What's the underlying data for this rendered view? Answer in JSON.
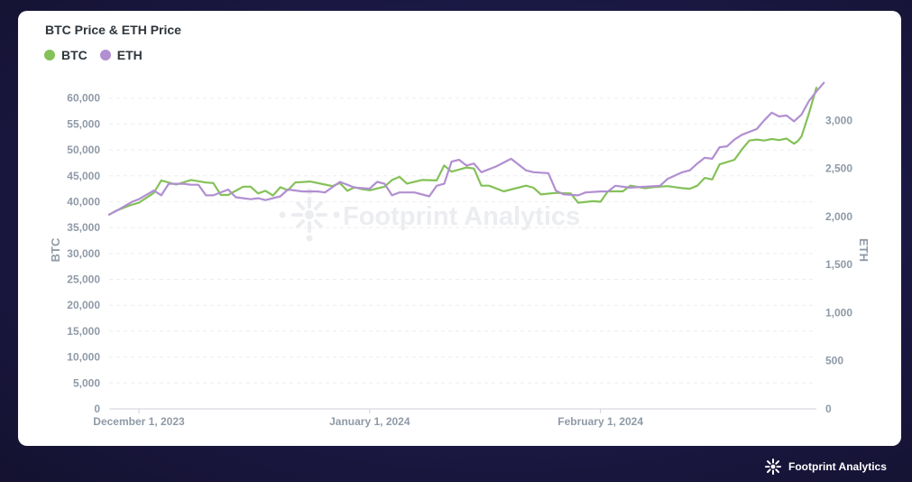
{
  "title": "BTC Price & ETH Price",
  "watermark": "Footprint Analytics",
  "footer_brand": "Footprint Analytics",
  "chart_data": {
    "type": "line",
    "title": "BTC Price & ETH Price",
    "x_ticks": [
      "December 1, 2023",
      "January 1, 2024",
      "February 1, 2024"
    ],
    "x_range": [
      "2023-11-27",
      "2024-02-28"
    ],
    "y_left": {
      "label": "BTC",
      "range": [
        0,
        65000
      ],
      "ticks": [
        "0",
        "5,000",
        "10,000",
        "15,000",
        "20,000",
        "25,000",
        "30,000",
        "35,000",
        "40,000",
        "45,000",
        "50,000",
        "55,000",
        "60,000"
      ]
    },
    "y_right": {
      "label": "ETH",
      "range": [
        0,
        3500
      ],
      "ticks": [
        "0",
        "500",
        "1,000",
        "1,500",
        "2,000",
        "2,500",
        "3,000"
      ]
    },
    "grid": true,
    "legend_position": "top-left",
    "series": [
      {
        "name": "BTC",
        "axis": "left",
        "color": "#84c158",
        "points": [
          [
            "2023-11-27",
            37500
          ],
          [
            "2023-11-28",
            38300
          ],
          [
            "2023-11-30",
            39400
          ],
          [
            "2023-12-01",
            39800
          ],
          [
            "2023-12-03",
            41700
          ],
          [
            "2023-12-04",
            44100
          ],
          [
            "2023-12-06",
            43300
          ],
          [
            "2023-12-08",
            44200
          ],
          [
            "2023-12-10",
            43700
          ],
          [
            "2023-12-11",
            43600
          ],
          [
            "2023-12-12",
            41300
          ],
          [
            "2023-12-13",
            41300
          ],
          [
            "2023-12-15",
            42900
          ],
          [
            "2023-12-16",
            42900
          ],
          [
            "2023-12-17",
            41600
          ],
          [
            "2023-12-18",
            42100
          ],
          [
            "2023-12-19",
            41200
          ],
          [
            "2023-12-20",
            42800
          ],
          [
            "2023-12-21",
            42200
          ],
          [
            "2023-12-22",
            43700
          ],
          [
            "2023-12-24",
            43900
          ],
          [
            "2023-12-26",
            43300
          ],
          [
            "2023-12-27",
            43000
          ],
          [
            "2023-12-28",
            43600
          ],
          [
            "2023-12-29",
            42100
          ],
          [
            "2023-12-30",
            42800
          ],
          [
            "2023-12-31",
            42400
          ],
          [
            "2024-01-01",
            42200
          ],
          [
            "2024-01-03",
            42900
          ],
          [
            "2024-01-04",
            44200
          ],
          [
            "2024-01-05",
            44800
          ],
          [
            "2024-01-06",
            43500
          ],
          [
            "2024-01-08",
            44200
          ],
          [
            "2024-01-10",
            44100
          ],
          [
            "2024-01-11",
            47000
          ],
          [
            "2024-01-12",
            45800
          ],
          [
            "2024-01-14",
            46600
          ],
          [
            "2024-01-15",
            46400
          ],
          [
            "2024-01-16",
            43100
          ],
          [
            "2024-01-17",
            43100
          ],
          [
            "2024-01-19",
            42000
          ],
          [
            "2024-01-22",
            43100
          ],
          [
            "2024-01-23",
            42700
          ],
          [
            "2024-01-24",
            41400
          ],
          [
            "2024-01-26",
            41700
          ],
          [
            "2024-01-28",
            41600
          ],
          [
            "2024-01-29",
            39800
          ],
          [
            "2024-01-31",
            40100
          ],
          [
            "2024-02-01",
            40000
          ],
          [
            "2024-02-02",
            42000
          ],
          [
            "2024-02-04",
            42000
          ],
          [
            "2024-02-05",
            43100
          ],
          [
            "2024-02-07",
            42600
          ],
          [
            "2024-02-08",
            42800
          ],
          [
            "2024-02-10",
            43000
          ],
          [
            "2024-02-12",
            42600
          ],
          [
            "2024-02-13",
            42500
          ],
          [
            "2024-02-14",
            43100
          ],
          [
            "2024-02-15",
            44600
          ],
          [
            "2024-02-16",
            44300
          ],
          [
            "2024-02-17",
            47200
          ],
          [
            "2024-02-19",
            48100
          ],
          [
            "2024-02-20",
            50100
          ],
          [
            "2024-02-21",
            51800
          ],
          [
            "2024-02-22",
            52000
          ],
          [
            "2024-02-23",
            51800
          ],
          [
            "2024-02-24",
            52100
          ],
          [
            "2024-02-25",
            51900
          ],
          [
            "2024-02-26",
            52200
          ],
          [
            "2024-02-27",
            51200
          ],
          [
            "2024-02-27.5",
            51700
          ],
          [
            "2024-02-28",
            52600
          ],
          [
            "2024-02-29",
            57000
          ],
          [
            "2024-03-01",
            62000
          ]
        ]
      },
      {
        "name": "ETH",
        "axis": "right",
        "color": "#b18fd1",
        "points": [
          [
            "2023-11-27",
            2020
          ],
          [
            "2023-11-28",
            2060
          ],
          [
            "2023-11-30",
            2150
          ],
          [
            "2023-12-01",
            2180
          ],
          [
            "2023-12-03",
            2270
          ],
          [
            "2023-12-04",
            2220
          ],
          [
            "2023-12-05",
            2340
          ],
          [
            "2023-12-07",
            2340
          ],
          [
            "2023-12-08",
            2330
          ],
          [
            "2023-12-09",
            2330
          ],
          [
            "2023-12-10",
            2220
          ],
          [
            "2023-12-11",
            2220
          ],
          [
            "2023-12-13",
            2280
          ],
          [
            "2023-12-14",
            2200
          ],
          [
            "2023-12-16",
            2180
          ],
          [
            "2023-12-17",
            2190
          ],
          [
            "2023-12-18",
            2170
          ],
          [
            "2023-12-20",
            2210
          ],
          [
            "2023-12-21",
            2280
          ],
          [
            "2023-12-23",
            2260
          ],
          [
            "2023-12-25",
            2260
          ],
          [
            "2023-12-26",
            2250
          ],
          [
            "2023-12-28",
            2360
          ],
          [
            "2023-12-29",
            2330
          ],
          [
            "2023-12-30",
            2300
          ],
          [
            "2024-01-01",
            2290
          ],
          [
            "2024-01-02",
            2360
          ],
          [
            "2024-01-03",
            2340
          ],
          [
            "2024-01-04",
            2220
          ],
          [
            "2024-01-05",
            2250
          ],
          [
            "2024-01-07",
            2250
          ],
          [
            "2024-01-09",
            2210
          ],
          [
            "2024-01-10",
            2320
          ],
          [
            "2024-01-11",
            2340
          ],
          [
            "2024-01-12",
            2570
          ],
          [
            "2024-01-13",
            2590
          ],
          [
            "2024-01-14",
            2530
          ],
          [
            "2024-01-15",
            2550
          ],
          [
            "2024-01-16",
            2460
          ],
          [
            "2024-01-18",
            2520
          ],
          [
            "2024-01-20",
            2600
          ],
          [
            "2024-01-22",
            2480
          ],
          [
            "2024-01-23",
            2460
          ],
          [
            "2024-01-25",
            2450
          ],
          [
            "2024-01-26",
            2270
          ],
          [
            "2024-01-27",
            2230
          ],
          [
            "2024-01-29",
            2220
          ],
          [
            "2024-01-30",
            2250
          ],
          [
            "2024-02-01",
            2260
          ],
          [
            "2024-02-02",
            2260
          ],
          [
            "2024-02-03",
            2320
          ],
          [
            "2024-02-05",
            2300
          ],
          [
            "2024-02-07",
            2310
          ],
          [
            "2024-02-09",
            2320
          ],
          [
            "2024-02-10",
            2390
          ],
          [
            "2024-02-12",
            2460
          ],
          [
            "2024-02-13",
            2480
          ],
          [
            "2024-02-14",
            2550
          ],
          [
            "2024-02-15",
            2610
          ],
          [
            "2024-02-16",
            2600
          ],
          [
            "2024-02-17",
            2720
          ],
          [
            "2024-02-18",
            2730
          ],
          [
            "2024-02-19",
            2800
          ],
          [
            "2024-02-20",
            2850
          ],
          [
            "2024-02-22",
            2910
          ],
          [
            "2024-02-23",
            3000
          ],
          [
            "2024-02-24",
            3080
          ],
          [
            "2024-02-25",
            3040
          ],
          [
            "2024-02-26",
            3050
          ],
          [
            "2024-02-27",
            2990
          ],
          [
            "2024-02-28",
            3060
          ],
          [
            "2024-02-29",
            3200
          ],
          [
            "2024-03-01",
            3300
          ],
          [
            "2024-03-02",
            3390
          ]
        ]
      }
    ]
  }
}
